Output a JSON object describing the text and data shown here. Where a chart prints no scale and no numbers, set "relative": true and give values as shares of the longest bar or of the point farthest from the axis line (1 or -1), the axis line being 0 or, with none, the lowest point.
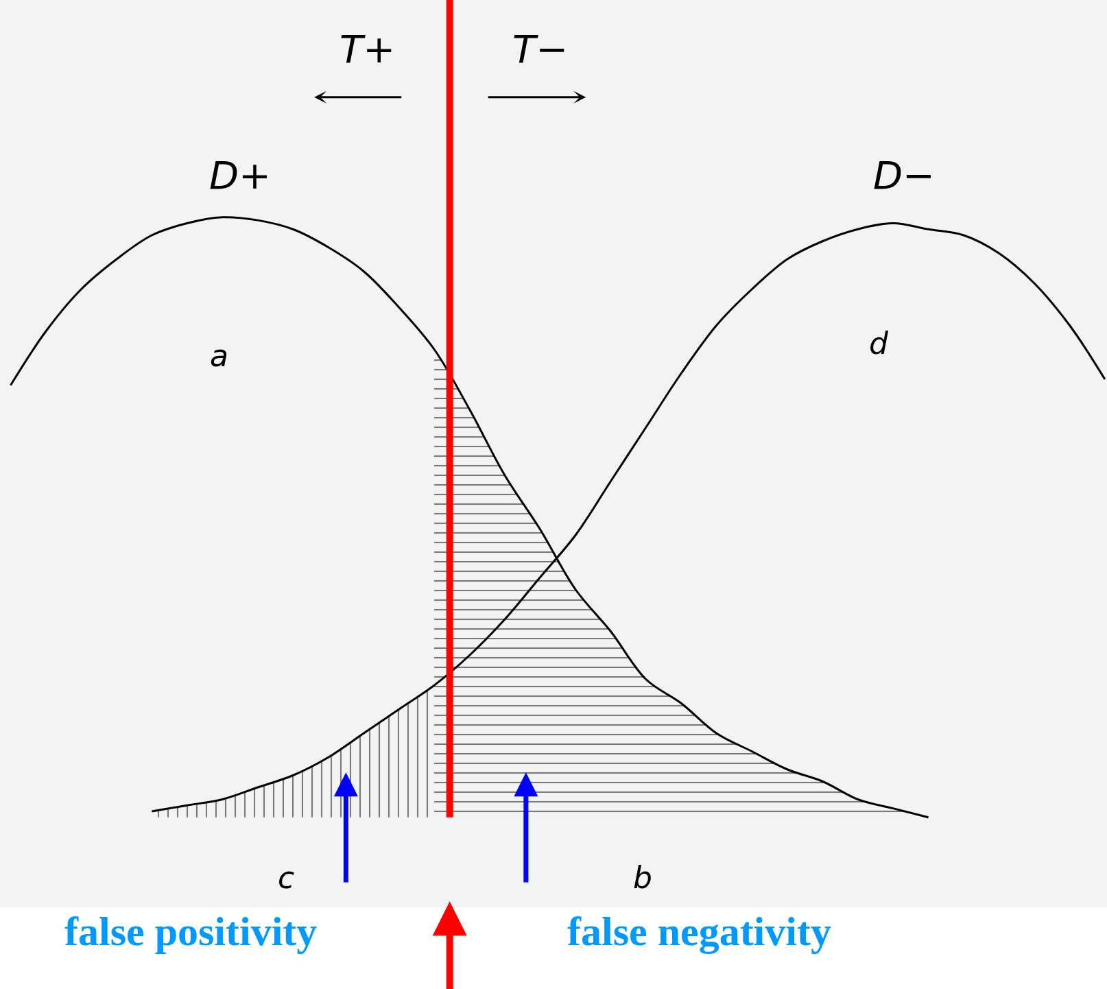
{
  "chart_data": {
    "type": "line",
    "relative": true,
    "categories": [
      null,
      null,
      null,
      null,
      null,
      null,
      null,
      null,
      null,
      null,
      null,
      null,
      null,
      null,
      null,
      null,
      null,
      null,
      null,
      null,
      null,
      null,
      null,
      null,
      null,
      null,
      null,
      null,
      null,
      null,
      null,
      null
    ],
    "series": [
      {
        "name": "D+",
        "color": "#000000",
        "values": [
          0.72,
          0.81,
          0.88,
          0.93,
          0.97,
          0.99,
          1.0,
          0.995,
          0.98,
          0.95,
          0.91,
          0.85,
          0.78,
          0.68,
          0.57,
          0.48,
          0.38,
          0.31,
          0.23,
          0.19,
          0.14,
          0.11,
          0.08,
          0.06,
          0.03,
          0.015,
          0.0,
          null,
          null,
          null,
          null,
          null
        ]
      },
      {
        "name": "D−",
        "color": "#000000",
        "values": [
          null,
          null,
          null,
          null,
          0.01,
          0.02,
          0.03,
          0.05,
          0.07,
          0.1,
          0.14,
          0.18,
          0.22,
          0.27,
          0.33,
          0.4,
          0.47,
          0.56,
          0.65,
          0.74,
          0.82,
          0.88,
          0.93,
          0.96,
          0.98,
          0.99,
          0.98,
          0.97,
          0.94,
          0.89,
          0.82,
          0.73
        ]
      },
      {
        "type": "area",
        "color": "#000000",
        "values": [
          null,
          null,
          null,
          null,
          0.01,
          0.02,
          0.03,
          0.05,
          0.07,
          0.1,
          0.14,
          0.18,
          0.22,
          null,
          null,
          null,
          null,
          null,
          null,
          null,
          null,
          null,
          null,
          null,
          null,
          null,
          null,
          null,
          null,
          null,
          null,
          null
        ]
      },
      {
        "type": "area",
        "color": "#000000",
        "values": [
          null,
          null,
          null,
          null,
          null,
          null,
          null,
          null,
          null,
          null,
          null,
          null,
          0.78,
          0.68,
          0.57,
          0.48,
          0.38,
          0.31,
          0.23,
          0.19,
          0.14,
          0.11,
          0.08,
          0.06,
          0.03,
          0.015,
          0.0,
          null,
          null,
          null,
          null,
          null
        ]
      }
    ],
    "annotations": [
      "T+",
      "T−",
      "a",
      "d",
      "c",
      "b",
      "false positivity",
      "false negativity"
    ],
    "legend": false
  }
}
